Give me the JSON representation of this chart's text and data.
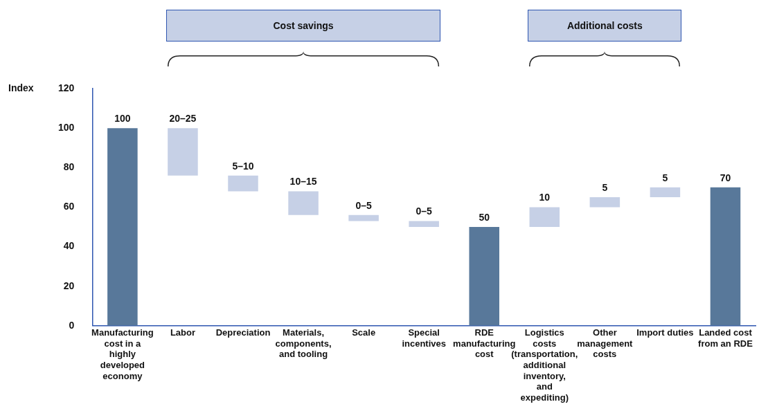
{
  "chart_data": {
    "type": "bar",
    "ylabel": "Index",
    "categories": [
      "Manufacturing cost in a highly developed economy",
      "Labor",
      "Depreciation",
      "Materials, components, and tooling",
      "Scale",
      "Special incentives",
      "RDE manufacturing cost",
      "Logistics costs (transportation, additional inventory, and expediting)",
      "Other management costs",
      "Import duties",
      "Landed cost from an RDE"
    ],
    "values": [
      100,
      -24,
      -8,
      -12,
      -3,
      -3,
      50,
      10,
      5,
      5,
      70
    ],
    "base": [
      null,
      100,
      76,
      68,
      56,
      53,
      null,
      50,
      60,
      65,
      null
    ],
    "value_labels": [
      "100",
      "20–25",
      "5–10",
      "10–15",
      "0–5",
      "0–5",
      "50",
      "10",
      "5",
      "5",
      "70"
    ],
    "colors": [
      "#58789a",
      "#c6d0e6",
      "#c6d0e6",
      "#c6d0e6",
      "#c6d0e6",
      "#c6d0e6",
      "#58789a",
      "#c6d0e6",
      "#c6d0e6",
      "#c6d0e6",
      "#58789a"
    ],
    "annotations": [
      "Cost savings",
      "Additional costs"
    ],
    "ylim": [
      0,
      120
    ],
    "yticks": [
      0,
      20,
      40,
      60,
      80,
      100,
      120
    ],
    "grid": false,
    "legend": false
  }
}
